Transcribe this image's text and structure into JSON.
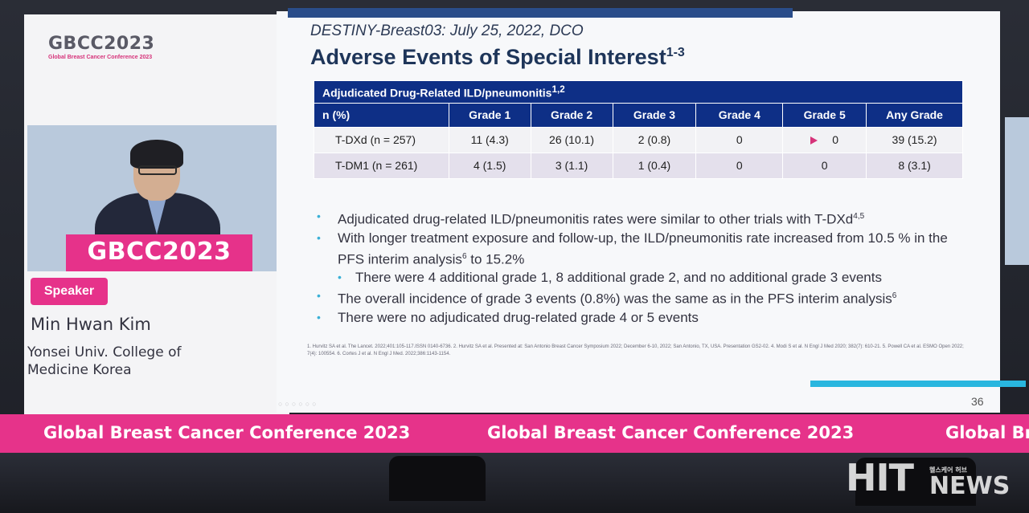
{
  "speaker_panel": {
    "logo_text": "GBCC2023",
    "logo_subtitle": "Global Breast Cancer Conference 2023",
    "podium_text": "GBCC2023",
    "badge_label": "Speaker",
    "name": "Min Hwan Kim",
    "affiliation": "Yonsei Univ. College of Medicine Korea"
  },
  "slide": {
    "subtitle": "DESTINY-Breast03: July 25, 2022, DCO",
    "title": "Adverse Events of Special Interest",
    "title_sup": "1-3",
    "table": {
      "caption": "Adjudicated Drug-Related ILD/pneumonitis",
      "caption_sup": "1,2",
      "headers": [
        "n (%)",
        "Grade 1",
        "Grade 2",
        "Grade 3",
        "Grade 4",
        "Grade 5",
        "Any Grade"
      ],
      "rows": [
        [
          "T-DXd (n = 257)",
          "11 (4.3)",
          "26 (10.1)",
          "2 (0.8)",
          "0",
          "0",
          "39 (15.2)"
        ],
        [
          "T-DM1 (n = 261)",
          "4 (1.5)",
          "3 (1.1)",
          "1 (0.4)",
          "0",
          "0",
          "8 (3.1)"
        ]
      ]
    },
    "bullets": [
      {
        "text": "Adjudicated drug-related ILD/pneumonitis rates were similar to other trials with T-DXd",
        "sup": "4,5"
      },
      {
        "text_a": "With longer treatment exposure and follow-up, the ILD/pneumonitis rate increased from 10.5 % in the PFS interim analysis",
        "sup": "6",
        "text_b": " to 15.2%"
      },
      {
        "text": "There were 4 additional grade 1, 8 additional grade 2, and no additional grade 3 events"
      },
      {
        "text": "The overall incidence of grade 3 events (0.8%) was the same as in the PFS interim analysis",
        "sup": "6"
      },
      {
        "text": "There were no adjudicated drug-related grade 4 or 5 events"
      }
    ],
    "references": "1. Hurvitz SA et al. The Lancet. 2022;401:105-117.ISSN 0140-6736. 2. Hurvitz SA et al. Presented at: San Antonio Breast Cancer Symposium 2022; December 6-10, 2022; San Antonio, TX, USA. Presentation GS2-02. 4. Modi S et al. N Engl J Med 2020; 382(7): 610-21. 5. Powell CA et al. ESMO Open 2022; 7(4): 100554. 6. Cortes J et al. N Engl J Med. 2022;386:1143-1154.",
    "page_number": "36"
  },
  "banner": {
    "text": "Global Breast Cancer Conference 2023",
    "text_cut": "Global Bre"
  },
  "watermark": {
    "brand": "HIT",
    "news": "NEWS",
    "korean": "헬스케어 허브"
  },
  "colors": {
    "brand_pink": "#e6338a",
    "table_header": "#0e2f86",
    "accent_cyan": "#29b6df"
  }
}
